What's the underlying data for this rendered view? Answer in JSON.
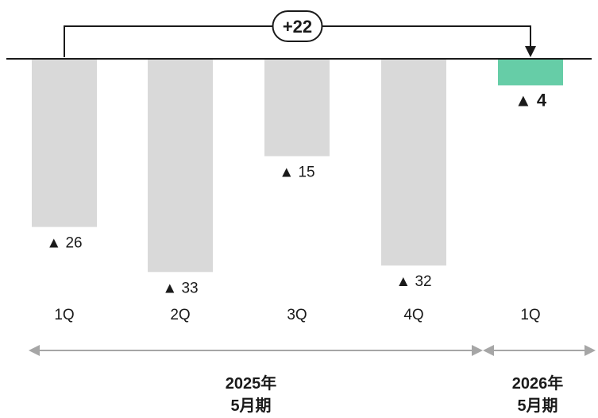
{
  "chart_data": {
    "type": "bar",
    "categories": [
      "1Q",
      "2Q",
      "3Q",
      "4Q",
      "1Q"
    ],
    "values": [
      -26,
      -33,
      -15,
      -32,
      -4
    ],
    "value_labels": [
      "▲ 26",
      "▲ 33",
      "▲ 15",
      "▲ 32",
      "▲ 4"
    ],
    "bar_colors": [
      "#d9d9d9",
      "#d9d9d9",
      "#d9d9d9",
      "#d9d9d9",
      "#66cda7"
    ],
    "highlight_index": 4,
    "ylim": [
      -36,
      0
    ],
    "grid": false,
    "comparison": {
      "label": "+22",
      "from_index": 0,
      "to_index": 4
    },
    "periods": [
      {
        "label": "2025年\n5月期",
        "start_index": 0,
        "end_index": 3
      },
      {
        "label": "2026年\n5月期",
        "start_index": 4,
        "end_index": 4
      }
    ],
    "colors": {
      "axis": "#1a1a1a",
      "bracket": "#1a1a1a",
      "period_arrow": "#a6a6a6",
      "text": "#1a1a1a"
    }
  }
}
